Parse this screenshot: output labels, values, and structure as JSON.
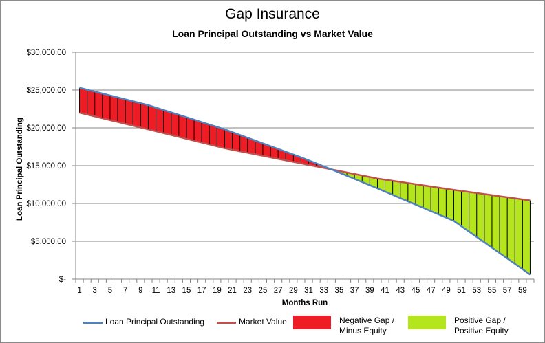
{
  "title": "Gap Insurance",
  "subtitle": "Loan Principal Outstanding vs Market Value",
  "colors": {
    "loan_line": "#4f81bd",
    "market_line": "#c0504d",
    "negative_fill": "#ee1c25",
    "positive_fill": "#b5e61d",
    "gridline": "#868686",
    "divider": "#000000"
  },
  "legend": {
    "loan": "Loan Principal Outstanding",
    "market": "Market Value",
    "negative": "Negative Gap  /\nMinus Equity",
    "positive": "Positive Gap /\nPositive Equity"
  },
  "chart_data": {
    "type": "line",
    "title": "Gap Insurance",
    "subtitle": "Loan Principal Outstanding vs Market Value",
    "xlabel": "Months Run",
    "ylabel": "Loan Principal Outstanding",
    "ylim": [
      0,
      30000
    ],
    "y_ticks": [
      0,
      5000,
      10000,
      15000,
      20000,
      25000,
      30000
    ],
    "y_tick_labels": [
      "$-",
      "$5,000.00",
      "$10,000.00",
      "$15,000.00",
      "$20,000.00",
      "$25,000.00",
      "$30,000.00"
    ],
    "x_ticks": [
      1,
      3,
      5,
      7,
      9,
      11,
      13,
      15,
      17,
      19,
      21,
      23,
      25,
      27,
      29,
      31,
      33,
      35,
      37,
      39,
      41,
      43,
      45,
      47,
      49,
      51,
      53,
      55,
      57,
      59
    ],
    "grid": true,
    "legend_position": "bottom",
    "x": [
      1,
      60
    ],
    "series": [
      {
        "name": "Loan Principal Outstanding",
        "shape": "concave-down amortisation curve",
        "key_points": [
          [
            1,
            25300
          ],
          [
            10,
            23000
          ],
          [
            20,
            19800
          ],
          [
            30,
            16100
          ],
          [
            34,
            14500
          ],
          [
            40,
            12000
          ],
          [
            50,
            7700
          ],
          [
            60,
            600
          ]
        ]
      },
      {
        "name": "Market Value",
        "shape": "steady depreciation",
        "key_points": [
          [
            1,
            22000
          ],
          [
            10,
            19800
          ],
          [
            20,
            17300
          ],
          [
            30,
            15300
          ],
          [
            34,
            14500
          ],
          [
            40,
            13300
          ],
          [
            50,
            11800
          ],
          [
            60,
            10400
          ]
        ]
      }
    ],
    "fill_regions": [
      {
        "name": "Negative Gap  /  Minus Equity",
        "from_x": 1,
        "to_x": 34,
        "between": "Loan above Market"
      },
      {
        "name": "Positive Gap /  Positive Equity",
        "from_x": 34,
        "to_x": 60,
        "between": "Market above Loan"
      }
    ]
  }
}
